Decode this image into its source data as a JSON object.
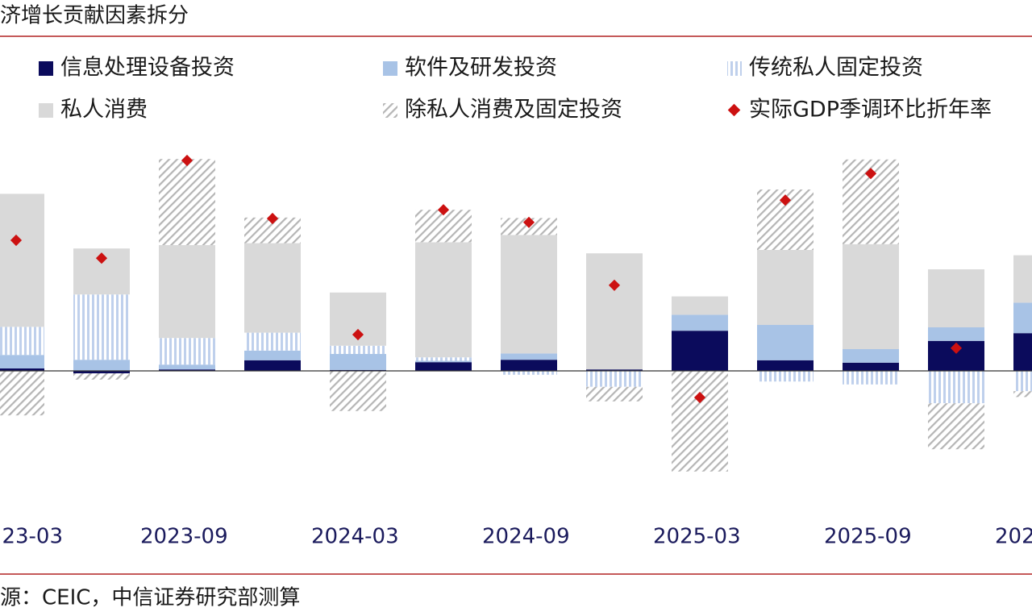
{
  "chart_data": {
    "type": "bar",
    "title": "济增长贡献因素拆分",
    "source": "源：CEIC，中信证券研究部测算",
    "categories": [
      "23-03",
      null,
      "2023-09",
      null,
      "2024-03",
      null,
      "2024-09",
      null,
      "2025-03",
      null,
      "2025-09",
      null,
      "202"
    ],
    "series": [
      {
        "name": "信息处理设备投资",
        "color": "#0b0b5c",
        "pattern": "solid",
        "values": [
          0.05,
          -0.05,
          0.03,
          0.22,
          0.02,
          0.18,
          0.23,
          0.03,
          0.83,
          0.22,
          0.17,
          0.62,
          0.78
        ]
      },
      {
        "name": "软件及研发投资",
        "color": "#a8c3e6",
        "pattern": "solid",
        "values": [
          0.28,
          0.23,
          0.1,
          0.2,
          0.33,
          0.03,
          0.13,
          0.0,
          0.33,
          0.73,
          0.28,
          0.28,
          0.63
        ]
      },
      {
        "name": "传统私人固定投资",
        "color": "#bfd0ec",
        "pattern": "vertical-stripes",
        "values": [
          0.58,
          1.35,
          0.55,
          0.37,
          0.17,
          0.07,
          -0.08,
          -0.33,
          0.0,
          -0.22,
          -0.28,
          -0.67,
          -0.42
        ]
      },
      {
        "name": "私人消费",
        "color": "#d9d9d9",
        "pattern": "solid",
        "values": [
          2.75,
          0.95,
          1.92,
          1.85,
          1.1,
          2.38,
          2.45,
          2.4,
          0.38,
          1.55,
          2.17,
          1.2,
          0.98
        ]
      },
      {
        "name": "除私人消费及固定投资",
        "color": "#b5b5b5",
        "pattern": "diagonal-hatch",
        "values": [
          -0.92,
          -0.13,
          1.78,
          0.53,
          -0.83,
          0.67,
          0.35,
          -0.3,
          -2.08,
          1.25,
          1.75,
          -0.95,
          -0.12
        ]
      },
      {
        "name": "实际GDP季调环比折年率",
        "color": "#cc1111",
        "type": "scatter",
        "marker": "diamond",
        "values": [
          2.7,
          2.33,
          4.35,
          3.15,
          0.75,
          3.33,
          3.07,
          1.77,
          -0.55,
          3.53,
          4.08,
          0.47,
          null
        ]
      }
    ]
  }
}
